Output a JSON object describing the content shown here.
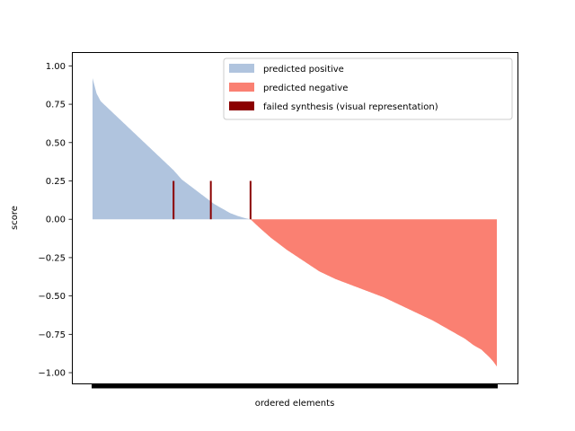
{
  "chart_data": {
    "type": "bar",
    "title": "",
    "xlabel": "ordered elements",
    "ylabel": "score",
    "ylim": [
      -1.07,
      1.09
    ],
    "yticks": [
      "1.00",
      "0.75",
      "0.50",
      "0.25",
      "0.00",
      "−0.25",
      "−0.50",
      "−0.75",
      "−1.00"
    ],
    "ytick_values": [
      1.0,
      0.75,
      0.5,
      0.25,
      0.0,
      -0.25,
      -0.5,
      -0.75,
      -1.0
    ],
    "grid": false,
    "legend_placement": "upper-right",
    "n_elements": 500,
    "series": [
      {
        "name": "predicted positive",
        "color": "#b0c4de",
        "profile_description": "sorted descending scores from 0.92 to 0.00",
        "x": [
          0,
          5,
          10,
          20,
          30,
          40,
          50,
          60,
          70,
          80,
          90,
          100,
          110,
          120,
          130,
          140,
          150,
          160,
          170,
          180,
          190,
          195
        ],
        "values": [
          0.92,
          0.82,
          0.77,
          0.72,
          0.67,
          0.62,
          0.57,
          0.52,
          0.47,
          0.42,
          0.37,
          0.32,
          0.26,
          0.22,
          0.18,
          0.14,
          0.1,
          0.07,
          0.04,
          0.02,
          0.005,
          0.0
        ]
      },
      {
        "name": "predicted negative",
        "color": "#fa8072",
        "x": [
          195,
          205,
          220,
          240,
          260,
          280,
          300,
          320,
          340,
          360,
          380,
          400,
          420,
          440,
          460,
          470,
          480,
          490,
          495,
          499
        ],
        "values": [
          0.0,
          -0.05,
          -0.12,
          -0.2,
          -0.27,
          -0.34,
          -0.39,
          -0.43,
          -0.47,
          -0.51,
          -0.56,
          -0.61,
          -0.66,
          -0.72,
          -0.78,
          -0.82,
          -0.85,
          -0.9,
          -0.93,
          -0.96
        ]
      },
      {
        "name": "failed synthesis (visual representation)",
        "color": "#8b0000",
        "x": [
          100,
          146,
          195
        ],
        "values": [
          0.25,
          0.25,
          0.25
        ]
      }
    ],
    "legend": [
      {
        "label": "predicted positive",
        "color": "#b0c4de"
      },
      {
        "label": "predicted negative",
        "color": "#fa8072"
      },
      {
        "label": "failed synthesis (visual representation)",
        "color": "#8b0000"
      }
    ]
  }
}
